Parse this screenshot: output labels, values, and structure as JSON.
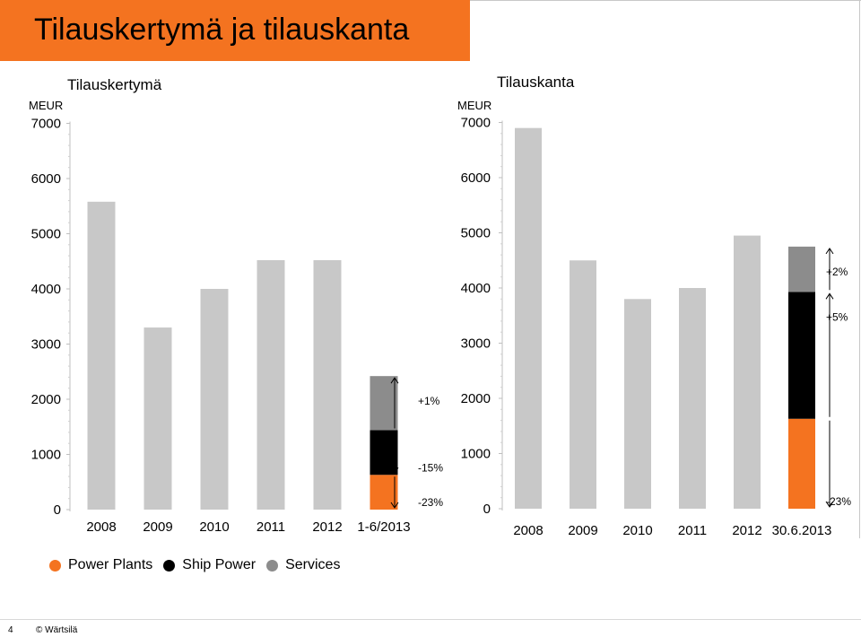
{
  "page": {
    "title": "Tilauskertymä ja tilauskanta",
    "accent_color": "#f47320",
    "footer": {
      "page_number": "4",
      "copyright": "© Wärtsilä"
    }
  },
  "legend": [
    {
      "label": "Power Plants",
      "color": "#f47320"
    },
    {
      "label": "Ship Power",
      "color": "#000000"
    },
    {
      "label": "Services",
      "color": "#8c8c8c"
    }
  ],
  "chart_data": [
    {
      "type": "bar",
      "title": "Tilauskertymä",
      "ylabel": "MEUR",
      "ylim": [
        0,
        7000
      ],
      "yticks": [
        0,
        1000,
        2000,
        3000,
        4000,
        5000,
        6000,
        7000
      ],
      "categories": [
        "2008",
        "2009",
        "2010",
        "2011",
        "2012",
        "1-6/2013"
      ],
      "total_values": [
        5580,
        3300,
        4000,
        4520,
        4520,
        null
      ],
      "total_color": "#c8c8c8",
      "stacked_category": "1-6/2013",
      "stacked_series": [
        {
          "name": "Power Plants",
          "value": 630,
          "color": "#f47320"
        },
        {
          "name": "Ship Power",
          "value": 810,
          "color": "#000000"
        },
        {
          "name": "Services",
          "value": 980,
          "color": "#8c8c8c"
        }
      ],
      "annotations": [
        {
          "series": "Services",
          "text": "+1%",
          "direction": "up"
        },
        {
          "series": "Ship Power",
          "text": "-15%",
          "direction": "down"
        },
        {
          "series": "Power Plants",
          "text": "-23%",
          "direction": "down"
        }
      ]
    },
    {
      "type": "bar",
      "title": "Tilauskanta",
      "ylabel": "MEUR",
      "ylim": [
        0,
        7000
      ],
      "yticks": [
        0,
        1000,
        2000,
        3000,
        4000,
        5000,
        6000,
        7000
      ],
      "categories": [
        "2008",
        "2009",
        "2010",
        "2011",
        "2012",
        "30.6.2013"
      ],
      "total_values": [
        6900,
        4500,
        3800,
        4000,
        4950,
        null
      ],
      "total_color": "#c8c8c8",
      "stacked_category": "30.6.2013",
      "stacked_series": [
        {
          "name": "Power Plants",
          "value": 1630,
          "color": "#f47320"
        },
        {
          "name": "Ship Power",
          "value": 2300,
          "color": "#000000"
        },
        {
          "name": "Services",
          "value": 820,
          "color": "#8c8c8c"
        }
      ],
      "annotations": [
        {
          "series": "Services",
          "text": "+2%",
          "direction": "up"
        },
        {
          "series": "Ship Power",
          "text": "+5%",
          "direction": "up"
        },
        {
          "series": "Power Plants",
          "text": "-23%",
          "direction": "down"
        }
      ]
    }
  ]
}
